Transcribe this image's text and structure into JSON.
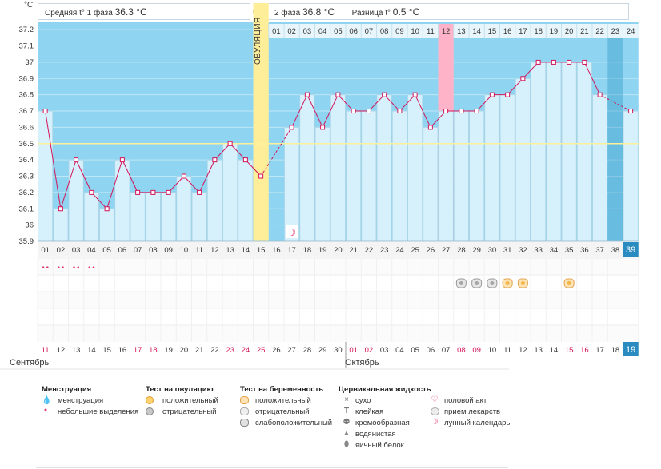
{
  "unit_label": "°C",
  "header": {
    "phase1_label": "Средняя t° 1 фаза",
    "phase1_value": "36.3 °C",
    "phase2_label": "2 фаза",
    "phase2_value": "36.8 °C",
    "diff_label": "Разница t°",
    "diff_value": "0.5 °C"
  },
  "ovulation_label": "ОВУЛЯЦИЯ",
  "month_labels": {
    "sep": "Сентябрь",
    "oct": "Октябрь"
  },
  "colors": {
    "band_blue": "#8fd4f0",
    "column_fill": "#d6f1fc",
    "column_stroke": "#a9d3e6",
    "line": "#d4145a",
    "ovulation": "#ffee99",
    "day12": "#ffb3c8",
    "coverline": "#fff199",
    "red_date": "#d4145a",
    "dark_bg": "#2a8bc0"
  },
  "chart_data": {
    "type": "line",
    "title": "Базальная температура",
    "ylabel": "°C",
    "ylim": [
      35.9,
      37.25
    ],
    "y_ticks": [
      "37.2",
      "37.1",
      "37",
      "36.9",
      "36.8",
      "36.7",
      "36.6",
      "36.5",
      "36.4",
      "36.3",
      "36.2",
      "36.1",
      "36",
      "35.9"
    ],
    "coverline": 36.5,
    "cycle_days": [
      "01",
      "02",
      "03",
      "04",
      "05",
      "06",
      "07",
      "08",
      "09",
      "10",
      "11",
      "12",
      "13",
      "14",
      "15",
      "16",
      "17",
      "18",
      "19",
      "20",
      "21",
      "22",
      "23",
      "24",
      "25",
      "26",
      "27",
      "28",
      "29",
      "30",
      "31",
      "32",
      "33",
      "34",
      "35",
      "36",
      "37",
      "38",
      "39"
    ],
    "dates": [
      "11",
      "12",
      "13",
      "14",
      "15",
      "16",
      "17",
      "18",
      "19",
      "20",
      "21",
      "22",
      "23",
      "24",
      "25",
      "26",
      "27",
      "28",
      "29",
      "30",
      "01",
      "02",
      "03",
      "04",
      "05",
      "06",
      "07",
      "08",
      "09",
      "10",
      "11",
      "12",
      "13",
      "14",
      "15",
      "16",
      "17",
      "18",
      "19"
    ],
    "red_dates": [
      0,
      6,
      7,
      12,
      13,
      14,
      20,
      21,
      27,
      28,
      34,
      35
    ],
    "values": [
      36.7,
      36.1,
      36.4,
      36.2,
      36.1,
      36.4,
      36.2,
      36.2,
      36.2,
      36.3,
      36.2,
      36.4,
      36.5,
      36.4,
      36.3,
      null,
      36.6,
      36.8,
      36.6,
      36.8,
      36.7,
      36.7,
      36.8,
      36.7,
      36.8,
      36.6,
      36.7,
      36.7,
      36.7,
      36.8,
      36.8,
      36.9,
      37.0,
      37.0,
      37.0,
      37.0,
      36.8,
      null,
      36.7
    ],
    "dashed_segments": [
      [
        14,
        16
      ],
      [
        36,
        38
      ]
    ],
    "ovulation_index": 14,
    "post_ovulation_days": [
      "01",
      "02",
      "03",
      "04",
      "05",
      "06",
      "07",
      "08",
      "09",
      "10",
      "11",
      "12",
      "13",
      "14",
      "15",
      "16",
      "17",
      "18",
      "19",
      "20",
      "21",
      "22",
      "23",
      "24"
    ],
    "highlight_post_day_index": 11,
    "moon_index": 16,
    "menstruation_indices": [
      0,
      1,
      2,
      3
    ],
    "pregnancy_tests": [
      {
        "index": 27,
        "result": "отрицательный"
      },
      {
        "index": 28,
        "result": "отрицательный"
      },
      {
        "index": 29,
        "result": "отрицательный"
      },
      {
        "index": 30,
        "result": "положительный"
      },
      {
        "index": 31,
        "result": "положительный"
      },
      {
        "index": 34,
        "result": "положительный"
      }
    ]
  },
  "legend": {
    "menstruation": {
      "title": "Менструация",
      "items": [
        "менструация",
        "небольшие выделения"
      ]
    },
    "ovulation_test": {
      "title": "Тест на овуляцию",
      "items": [
        "положительный",
        "отрицательный"
      ]
    },
    "pregnancy_test": {
      "title": "Тест на беременность",
      "items": [
        "положительный",
        "отрицательный",
        "слабоположительный"
      ]
    },
    "cervical": {
      "title": "Цервикальная жидкость",
      "items": [
        "сухо",
        "клейкая",
        "кремообразная",
        "водянистая",
        "яичный белок"
      ]
    },
    "other": {
      "items": [
        "половой акт",
        "прием лекарств",
        "лунный календарь"
      ]
    }
  }
}
